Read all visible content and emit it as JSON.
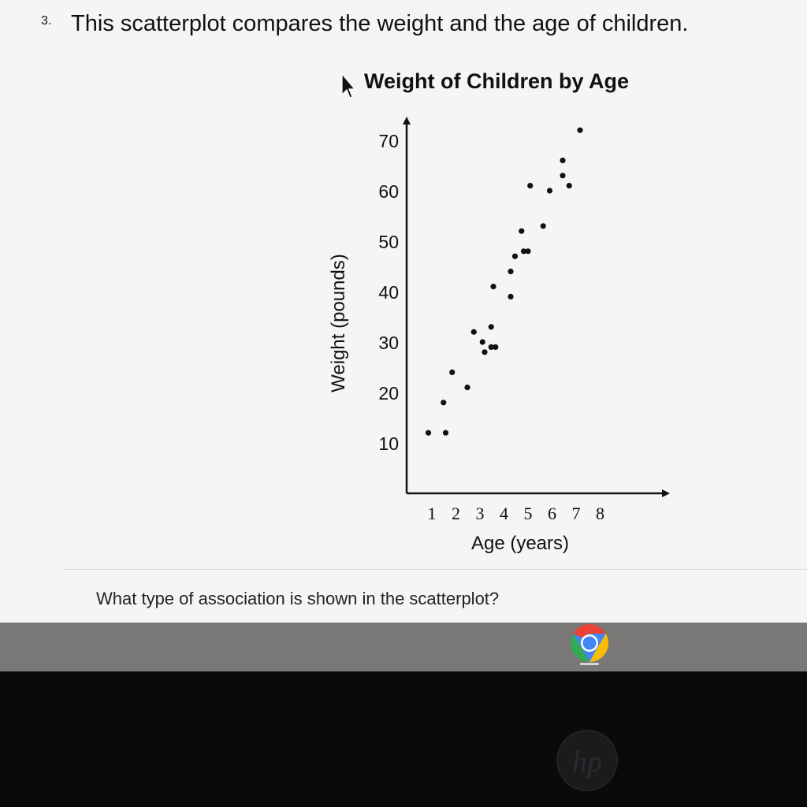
{
  "question": {
    "number": "3.",
    "text": "This scatterplot compares the weight and the age of children.",
    "prompt": "What type of association is shown in the scatterplot?"
  },
  "chart_data": {
    "type": "scatter",
    "title": "Weight of Children by Age",
    "xlabel": "Age (years)",
    "ylabel": "Weight (pounds)",
    "x_ticks": [
      "1",
      "2",
      "3",
      "4",
      "5",
      "6",
      "7",
      "8"
    ],
    "y_ticks": [
      "10",
      "20",
      "30",
      "40",
      "50",
      "60",
      "70"
    ],
    "xlim": [
      0,
      8.5
    ],
    "ylim": [
      0,
      77
    ],
    "grid": false,
    "series": [
      {
        "points": [
          {
            "x": 1,
            "y": 12
          },
          {
            "x": 1.8,
            "y": 12
          },
          {
            "x": 1.7,
            "y": 18
          },
          {
            "x": 2.1,
            "y": 24
          },
          {
            "x": 2.8,
            "y": 21
          },
          {
            "x": 3.1,
            "y": 32
          },
          {
            "x": 3.5,
            "y": 30
          },
          {
            "x": 3.9,
            "y": 33
          },
          {
            "x": 4.1,
            "y": 29
          },
          {
            "x": 3.6,
            "y": 28
          },
          {
            "x": 3.9,
            "y": 29
          },
          {
            "x": 4,
            "y": 41
          },
          {
            "x": 4.8,
            "y": 39
          },
          {
            "x": 4.8,
            "y": 44
          },
          {
            "x": 5,
            "y": 47
          },
          {
            "x": 5.4,
            "y": 48
          },
          {
            "x": 5.6,
            "y": 48
          },
          {
            "x": 5.3,
            "y": 52
          },
          {
            "x": 6.3,
            "y": 53
          },
          {
            "x": 5.7,
            "y": 61
          },
          {
            "x": 6.6,
            "y": 60
          },
          {
            "x": 7.2,
            "y": 66
          },
          {
            "x": 7.2,
            "y": 63
          },
          {
            "x": 7.5,
            "y": 61
          },
          {
            "x": 8,
            "y": 72
          }
        ]
      }
    ]
  },
  "taskbar": {
    "browser_icon": "chrome-browser-icon",
    "accent": "#4285f4"
  },
  "device": {
    "logo_icon": "hp-logo-icon"
  }
}
